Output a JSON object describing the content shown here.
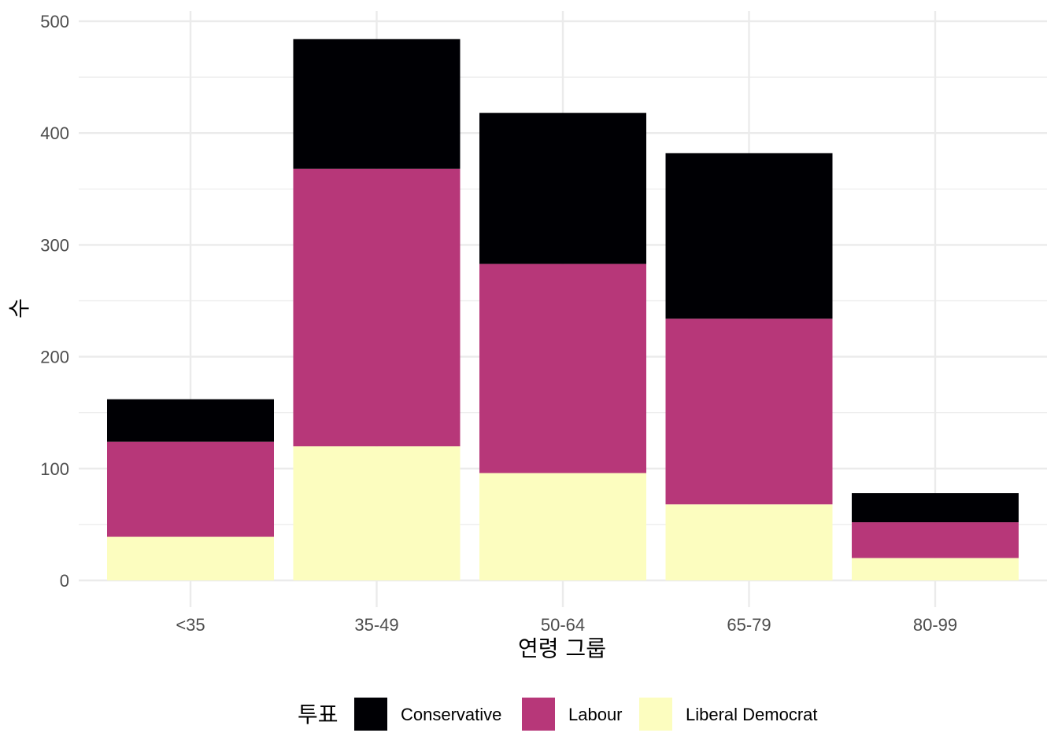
{
  "chart_data": {
    "type": "bar",
    "stacked": true,
    "categories": [
      "<35",
      "35-49",
      "50-64",
      "65-79",
      "80-99"
    ],
    "series": [
      {
        "name": "Liberal Democrat",
        "color": "#FCFDBF",
        "values": [
          39,
          120,
          96,
          68,
          20
        ]
      },
      {
        "name": "Labour",
        "color": "#B73779",
        "values": [
          85,
          248,
          187,
          166,
          32
        ]
      },
      {
        "name": "Conservative",
        "color": "#000004",
        "values": [
          38,
          116,
          135,
          148,
          26
        ]
      }
    ],
    "xlabel": "연령 그룹",
    "ylabel": "수",
    "ylim": [
      0,
      500
    ],
    "yticks": [
      "0",
      "100",
      "200",
      "300",
      "400",
      "500"
    ],
    "legend": {
      "title": "투표",
      "position": "bottom",
      "items": [
        "Conservative",
        "Labour",
        "Liberal Democrat"
      ]
    },
    "grid": true
  }
}
